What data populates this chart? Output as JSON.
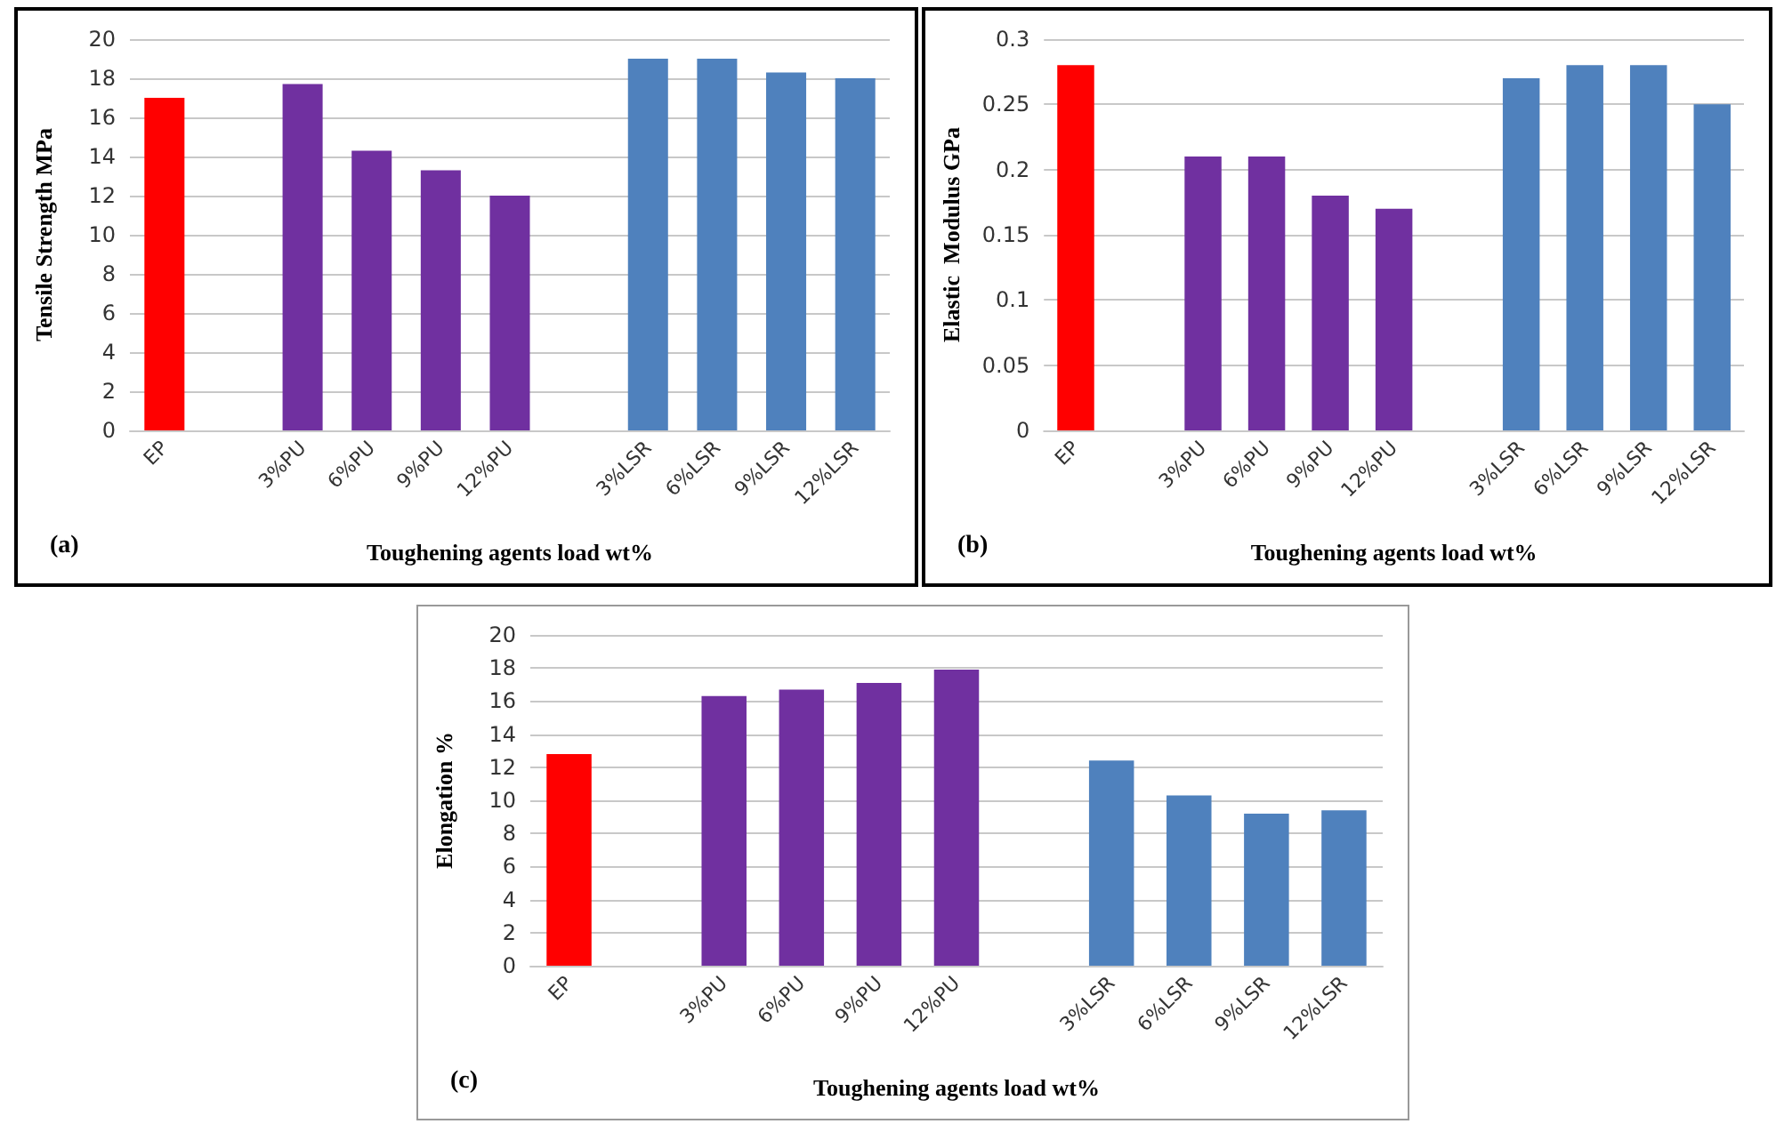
{
  "chart_data": [
    {
      "type": "bar",
      "categories": [
        "EP",
        null,
        "3%PU",
        "6%PU",
        "9%PU",
        "12%PU",
        null,
        "3%LSR",
        "6%LSR",
        "9%LSR",
        "12%LSR"
      ],
      "values": [
        17,
        null,
        17.7,
        14.3,
        13.3,
        12,
        null,
        19,
        19,
        18.3,
        18
      ],
      "colors": [
        "#ff0000",
        null,
        "#7030a0",
        "#7030a0",
        "#7030a0",
        "#7030a0",
        null,
        "#4f81bd",
        "#4f81bd",
        "#4f81bd",
        "#4f81bd"
      ],
      "xlabel": "Toughening agents load wt%",
      "ylabel": "Tensile Strength MPa",
      "ylim": [
        0,
        20
      ],
      "yticks": [
        0,
        2,
        4,
        6,
        8,
        10,
        12,
        14,
        16,
        18,
        20
      ],
      "grid": "y",
      "annotations": [
        "(a)"
      ]
    },
    {
      "type": "bar",
      "categories": [
        "EP",
        null,
        "3%PU",
        "6%PU",
        "9%PU",
        "12%PU",
        null,
        "3%LSR",
        "6%LSR",
        "9%LSR",
        "12%LSR"
      ],
      "values": [
        0.28,
        null,
        0.21,
        0.21,
        0.18,
        0.17,
        null,
        0.27,
        0.28,
        0.28,
        0.25
      ],
      "colors": [
        "#ff0000",
        null,
        "#7030a0",
        "#7030a0",
        "#7030a0",
        "#7030a0",
        null,
        "#4f81bd",
        "#4f81bd",
        "#4f81bd",
        "#4f81bd"
      ],
      "xlabel": "Toughening agents load wt%",
      "ylabel": "Elastic  Modulus GPa",
      "ylim": [
        0,
        0.3
      ],
      "yticks": [
        0,
        0.05,
        0.1,
        0.15,
        0.2,
        0.25,
        0.3
      ],
      "grid": "y",
      "annotations": [
        "(b)"
      ]
    },
    {
      "type": "bar",
      "categories": [
        "EP",
        null,
        "3%PU",
        "6%PU",
        "9%PU",
        "12%PU",
        null,
        "3%LSR",
        "6%LSR",
        "9%LSR",
        "12%LSR"
      ],
      "values": [
        12.8,
        null,
        16.3,
        16.7,
        17.1,
        17.9,
        null,
        12.4,
        10.3,
        9.2,
        9.4
      ],
      "colors": [
        "#ff0000",
        null,
        "#7030a0",
        "#7030a0",
        "#7030a0",
        "#7030a0",
        null,
        "#4f81bd",
        "#4f81bd",
        "#4f81bd",
        "#4f81bd"
      ],
      "xlabel": "Toughening agents load wt%",
      "ylabel": "Elongation %",
      "ylim": [
        0,
        20
      ],
      "yticks": [
        0,
        2,
        4,
        6,
        8,
        10,
        12,
        14,
        16,
        18,
        20
      ],
      "grid": "y",
      "annotations": [
        "(c)"
      ]
    }
  ]
}
